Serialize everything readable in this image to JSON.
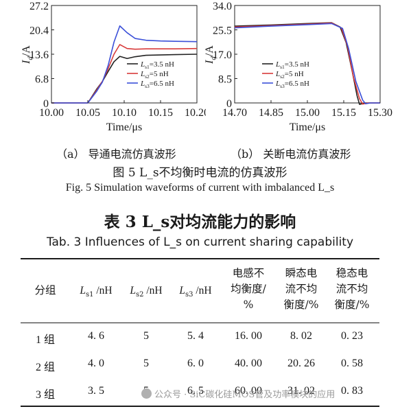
{
  "chart_data": [
    {
      "type": "line",
      "xlabel": "Time/μs",
      "ylabel": "I_d/A",
      "xlim": [
        10.0,
        10.2
      ],
      "ylim": [
        0,
        27.2
      ],
      "x_ticks": [
        "10.00",
        "10.05",
        "10.10",
        "10.15",
        "10.20"
      ],
      "y_ticks": [
        "0",
        "6.8",
        "13.6",
        "20.4",
        "27.2"
      ],
      "legend_position": "lower-right",
      "series": [
        {
          "name": "L_s1=3.5 nH",
          "color": "#222222",
          "x": [
            10.0,
            10.05,
            10.062,
            10.07,
            10.078,
            10.086,
            10.094,
            10.104,
            10.115,
            10.13,
            10.15,
            10.17,
            10.2
          ],
          "y": [
            0,
            0,
            3.8,
            6.0,
            8.8,
            11.5,
            13.0,
            12.4,
            12.9,
            13.3,
            13.4,
            13.5,
            13.6
          ]
        },
        {
          "name": "L_s2=5 nH",
          "color": "#d83a3a",
          "x": [
            10.0,
            10.05,
            10.062,
            10.07,
            10.078,
            10.086,
            10.094,
            10.104,
            10.115,
            10.13,
            10.15,
            10.17,
            10.2
          ],
          "y": [
            0,
            0,
            3.5,
            6.0,
            9.6,
            13.6,
            16.3,
            15.2,
            15.0,
            15.1,
            15.1,
            15.1,
            15.2
          ]
        },
        {
          "name": "L_s3=6.5 nH",
          "color": "#3a4fd8",
          "x": [
            10.0,
            10.05,
            10.062,
            10.07,
            10.078,
            10.086,
            10.094,
            10.104,
            10.115,
            10.13,
            10.15,
            10.17,
            10.2
          ],
          "y": [
            0,
            0,
            3.2,
            5.8,
            10.5,
            17.0,
            21.5,
            19.6,
            18.0,
            17.5,
            17.3,
            17.2,
            17.1
          ]
        }
      ]
    },
    {
      "type": "line",
      "xlabel": "Time/μs",
      "ylabel": "I_d/A",
      "xlim": [
        14.7,
        15.3
      ],
      "ylim": [
        0,
        34.0
      ],
      "x_ticks": [
        "14.70",
        "14.85",
        "15.00",
        "15.15",
        "15.30"
      ],
      "y_ticks": [
        "0",
        "8.5",
        "17.0",
        "25.5",
        "34.0"
      ],
      "legend_position": "lower-left",
      "series": [
        {
          "name": "L_s1=3.5 nH",
          "color": "#222222",
          "x": [
            14.7,
            14.85,
            15.0,
            15.1,
            15.135,
            15.16,
            15.185,
            15.205,
            15.215,
            15.24,
            15.3
          ],
          "y": [
            26.8,
            27.2,
            27.7,
            28.0,
            26.5,
            21.0,
            11.0,
            2.5,
            -0.5,
            0.0,
            0.0
          ]
        },
        {
          "name": "L_s2=5 nH",
          "color": "#d83a3a",
          "x": [
            14.7,
            14.85,
            15.0,
            15.1,
            15.14,
            15.165,
            15.19,
            15.215,
            15.228,
            15.25,
            15.3
          ],
          "y": [
            26.5,
            27.0,
            27.5,
            27.9,
            26.2,
            20.0,
            9.0,
            1.5,
            -0.4,
            0.0,
            0.0
          ]
        },
        {
          "name": "L_s3=6.5 nH",
          "color": "#3a4fd8",
          "x": [
            14.7,
            14.85,
            15.0,
            15.1,
            15.145,
            15.17,
            15.2,
            15.228,
            15.24,
            15.26,
            15.3
          ],
          "y": [
            26.2,
            26.8,
            27.3,
            27.7,
            26.0,
            19.0,
            7.5,
            1.0,
            -0.3,
            0.0,
            0.0
          ]
        }
      ]
    }
  ],
  "captions": {
    "sub_a": "（a） 导通电流仿真波形",
    "sub_b": "（b） 关断电流仿真波形",
    "figure_cn": "图 5 L_s不均衡时电流的仿真波形",
    "figure_en": "Fig. 5  Simulation waveforms of current with imbalanced L_s"
  },
  "table": {
    "title_cn": "表 3  L_s对均流能力的影响",
    "title_en": "Tab. 3  Influences of L_s on current sharing capability",
    "headers": [
      [
        "分组"
      ],
      [
        "L_s1 /nH"
      ],
      [
        "L_s2 /nH"
      ],
      [
        "L_s3 /nH"
      ],
      [
        "电感不",
        "均衡度/",
        "%"
      ],
      [
        "瞬态电",
        "流不均",
        "衡度/%"
      ],
      [
        "稳态电",
        "流不均",
        "衡度/%"
      ]
    ],
    "rows": [
      [
        "1 组",
        "4. 6",
        "5",
        "5. 4",
        "16. 00",
        "8. 02",
        "0. 23"
      ],
      [
        "2 组",
        "4. 0",
        "5",
        "6. 0",
        "40. 00",
        "20. 26",
        "0. 58"
      ],
      [
        "3 组",
        "3. 5",
        "5",
        "6. 5",
        "60. 00",
        "31. 02",
        "0. 83"
      ]
    ]
  },
  "watermark": "公众号 · SiC碳化硅MOS管及功率模块的应用"
}
